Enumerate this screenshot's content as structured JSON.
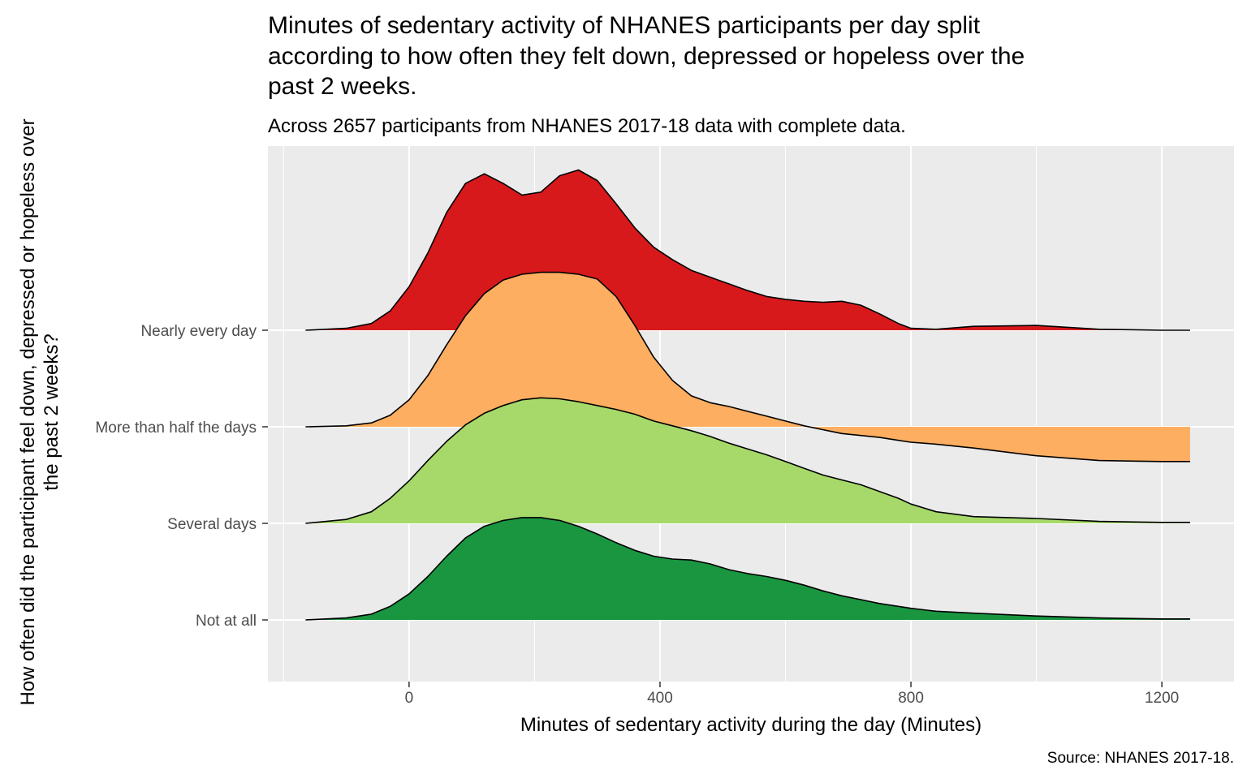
{
  "chart_data": {
    "type": "area",
    "subtype": "ridgeline-density",
    "title": "Minutes of sedentary activity of NHANES participants per day split according to how often they felt down, depressed or hopeless over the past 2 weeks.",
    "title_lines": [
      "Minutes of sedentary activity of NHANES participants per day split",
      "according to how often they felt down, depressed or hopeless over the",
      "past 2 weeks."
    ],
    "subtitle": "Across 2657 participants from NHANES 2017-18 data with complete data.",
    "xlabel": "Minutes of sedentary activity during the day (Minutes)",
    "ylabel": "How often did the participant feel down, depressed or hopeless over the past 2 weeks?",
    "ylabel_lines": [
      "How often did the participant feel down, depressed or hopeless over",
      "the past 2 weeks?"
    ],
    "caption": "Source: NHANES 2017-18.",
    "xlim": [
      -225,
      1315
    ],
    "x_ticks": [
      0,
      400,
      800,
      1200
    ],
    "x_tick_labels": [
      "0",
      "400",
      "800",
      "1200"
    ],
    "grid": true,
    "legend": "none",
    "panel_background": "#EBEBEB",
    "categories": [
      "Not at all",
      "Several days",
      "More than half the days",
      "Nearly every day"
    ],
    "series": [
      {
        "name": "Not at all",
        "color": "#1A9641",
        "x": [
          -165,
          -100,
          -60,
          -30,
          0,
          30,
          60,
          90,
          120,
          150,
          180,
          210,
          240,
          270,
          300,
          330,
          360,
          390,
          420,
          450,
          480,
          510,
          540,
          570,
          600,
          630,
          660,
          690,
          720,
          750,
          780,
          800,
          840,
          900,
          1000,
          1100,
          1200,
          1245
        ],
        "height": [
          0.0,
          0.02,
          0.06,
          0.14,
          0.27,
          0.45,
          0.66,
          0.85,
          0.97,
          1.03,
          1.06,
          1.06,
          1.03,
          0.97,
          0.89,
          0.8,
          0.72,
          0.66,
          0.63,
          0.62,
          0.58,
          0.52,
          0.48,
          0.45,
          0.41,
          0.36,
          0.3,
          0.25,
          0.21,
          0.17,
          0.14,
          0.12,
          0.09,
          0.07,
          0.04,
          0.02,
          0.01,
          0.01
        ]
      },
      {
        "name": "Several days",
        "color": "#A6D96A",
        "x": [
          -165,
          -100,
          -60,
          -30,
          0,
          30,
          60,
          90,
          120,
          150,
          180,
          210,
          240,
          270,
          300,
          330,
          360,
          390,
          420,
          450,
          480,
          510,
          540,
          570,
          600,
          630,
          660,
          690,
          720,
          750,
          780,
          800,
          840,
          900,
          1000,
          1100,
          1200,
          1245
        ],
        "height": [
          0.0,
          0.04,
          0.12,
          0.26,
          0.44,
          0.65,
          0.85,
          1.02,
          1.14,
          1.22,
          1.28,
          1.3,
          1.29,
          1.26,
          1.22,
          1.18,
          1.13,
          1.06,
          1.01,
          0.96,
          0.9,
          0.83,
          0.77,
          0.71,
          0.64,
          0.57,
          0.5,
          0.45,
          0.4,
          0.33,
          0.26,
          0.2,
          0.12,
          0.07,
          0.05,
          0.02,
          0.01,
          0.01
        ]
      },
      {
        "name": "More than half the days",
        "color": "#FDAE61",
        "x": [
          -165,
          -100,
          -60,
          -30,
          0,
          30,
          60,
          90,
          120,
          150,
          180,
          210,
          240,
          270,
          300,
          330,
          360,
          390,
          420,
          450,
          480,
          510,
          540,
          570,
          600,
          630,
          660,
          690,
          720,
          750,
          780,
          800,
          840,
          900,
          1000,
          1100,
          1200,
          1245
        ],
        "height": [
          0.0,
          0.01,
          0.04,
          0.12,
          0.28,
          0.53,
          0.85,
          1.15,
          1.38,
          1.52,
          1.58,
          1.6,
          1.6,
          1.58,
          1.53,
          1.35,
          1.05,
          0.72,
          0.48,
          0.32,
          0.25,
          0.21,
          0.16,
          0.11,
          0.06,
          0.01,
          -0.03,
          -0.07,
          -0.09,
          -0.11,
          -0.14,
          -0.16,
          -0.18,
          -0.22,
          -0.3,
          -0.35,
          -0.36,
          -0.36
        ]
      },
      {
        "name": "Nearly every day",
        "color": "#D7191C",
        "x": [
          -165,
          -100,
          -60,
          -30,
          0,
          30,
          60,
          90,
          120,
          150,
          180,
          210,
          240,
          270,
          300,
          330,
          360,
          390,
          420,
          450,
          480,
          510,
          540,
          570,
          600,
          630,
          660,
          690,
          720,
          750,
          780,
          800,
          840,
          900,
          1000,
          1100,
          1200,
          1245
        ],
        "height": [
          0.0,
          0.02,
          0.07,
          0.2,
          0.45,
          0.8,
          1.22,
          1.52,
          1.62,
          1.52,
          1.4,
          1.43,
          1.6,
          1.66,
          1.55,
          1.31,
          1.06,
          0.86,
          0.73,
          0.62,
          0.55,
          0.48,
          0.41,
          0.35,
          0.32,
          0.3,
          0.29,
          0.3,
          0.26,
          0.17,
          0.07,
          0.02,
          0.01,
          0.04,
          0.05,
          0.01,
          0.0,
          0.0
        ]
      }
    ]
  }
}
